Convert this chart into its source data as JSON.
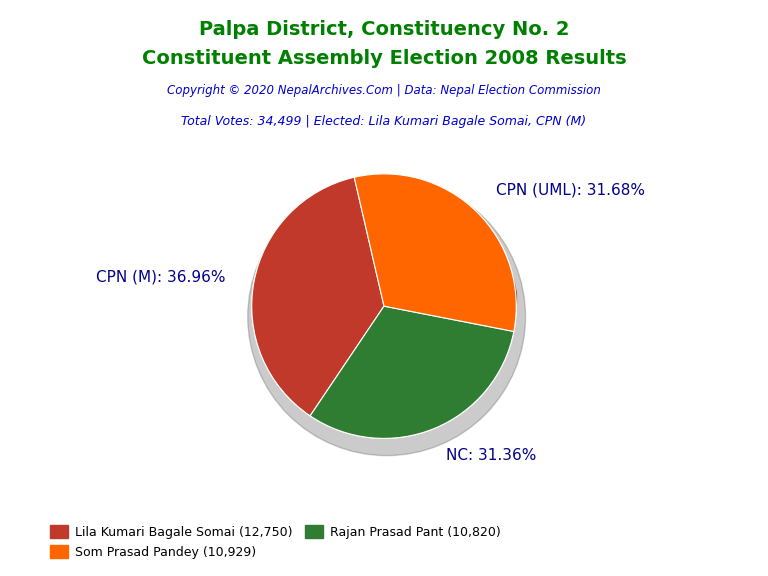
{
  "title_line1": "Palpa District, Constituency No. 2",
  "title_line2": "Constituent Assembly Election 2008 Results",
  "title_color": "#008000",
  "copyright_text": "Copyright © 2020 NepalArchives.Com | Data: Nepal Election Commission",
  "copyright_color": "#0000CD",
  "total_votes_text": "Total Votes: 34,499 | Elected: Lila Kumari Bagale Somai, CPN (M)",
  "total_votes_color": "#0000CD",
  "slices": [
    {
      "label": "CPN (M): 36.96%",
      "value": 12750,
      "color": "#C0392B"
    },
    {
      "label": "NC: 31.36%",
      "value": 10820,
      "color": "#2E7D32"
    },
    {
      "label": "CPN (UML): 31.68%",
      "value": 10929,
      "color": "#FF6600"
    }
  ],
  "legend_entries": [
    {
      "label": "Lila Kumari Bagale Somai (12,750)",
      "color": "#C0392B"
    },
    {
      "label": "Som Prasad Pandey (10,929)",
      "color": "#FF6600"
    },
    {
      "label": "Rajan Prasad Pant (10,820)",
      "color": "#2E7D32"
    }
  ],
  "label_color": "#00008B",
  "label_fontsize": 11,
  "background_color": "#FFFFFF",
  "startangle": 103
}
